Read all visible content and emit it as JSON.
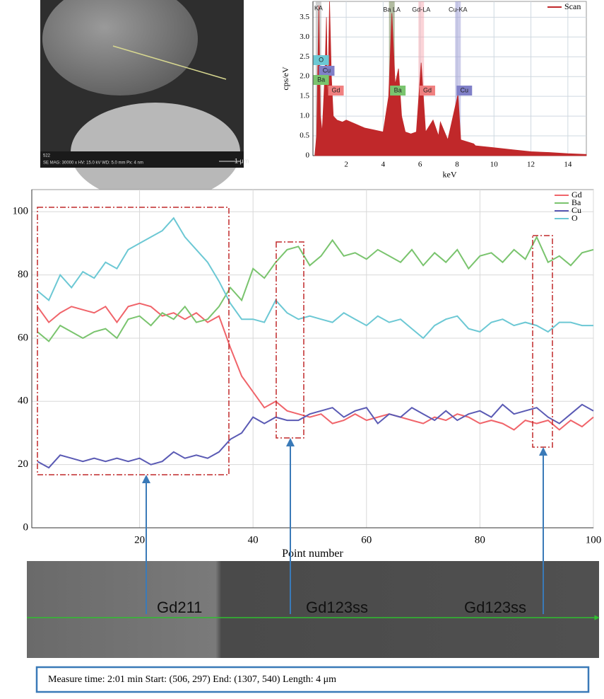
{
  "chart_data": [
    {
      "type": "area",
      "y_label": "cps/eV",
      "x_label": "keV",
      "x": [
        0.3,
        0.4,
        0.52,
        0.6,
        0.7,
        0.85,
        0.93,
        1.0,
        1.1,
        1.2,
        1.3,
        1.5,
        1.8,
        2.0,
        2.5,
        3.0,
        3.5,
        4.0,
        4.3,
        4.47,
        4.65,
        4.83,
        5.0,
        5.2,
        5.5,
        5.8,
        6.06,
        6.3,
        6.7,
        7.0,
        7.1,
        7.5,
        8.05,
        8.2,
        8.9,
        9.0,
        10,
        11,
        12,
        13,
        14,
        15
      ],
      "series": [
        {
          "name": "Scan",
          "color": "#c0282a",
          "values": [
            0.0,
            0.5,
            3.8,
            1.0,
            0.6,
            2.1,
            3.5,
            1.2,
            3.9,
            2.0,
            1.0,
            0.9,
            0.85,
            0.9,
            0.8,
            0.7,
            0.65,
            0.6,
            1.5,
            3.6,
            1.8,
            2.2,
            1.0,
            0.6,
            0.55,
            0.6,
            2.35,
            0.6,
            0.9,
            0.5,
            0.85,
            0.4,
            1.55,
            0.4,
            0.3,
            0.25,
            0.2,
            0.15,
            0.1,
            0.08,
            0.05,
            0.03
          ]
        }
      ],
      "xlim": [
        0.2,
        15
      ],
      "xticks": [
        2,
        4,
        6,
        8,
        10,
        12,
        14
      ],
      "ylim": [
        0,
        3.9
      ],
      "yticks": [
        0,
        0.5,
        {
          "value": 1,
          "label": "1.0"
        },
        1.5,
        {
          "value": 2,
          "label": "2.0"
        },
        2.5,
        {
          "value": 3,
          "label": "3.0"
        },
        3.5
      ],
      "grid": true,
      "legend": "top-right",
      "annotations": [
        "KA",
        "Ba LA",
        "Gd-LA",
        "Cu-KA",
        "O",
        "Cu",
        "Ba",
        "Gd",
        "Ba",
        "Gd",
        "Cu"
      ]
    },
    {
      "type": "line",
      "x_label": "Point number",
      "x": [
        2,
        4,
        6,
        8,
        10,
        12,
        14,
        16,
        18,
        20,
        22,
        24,
        26,
        28,
        30,
        32,
        34,
        36,
        38,
        40,
        42,
        44,
        46,
        48,
        50,
        52,
        54,
        56,
        58,
        60,
        62,
        64,
        66,
        68,
        70,
        72,
        74,
        76,
        78,
        80,
        82,
        84,
        86,
        88,
        90,
        92,
        94,
        96,
        98,
        100
      ],
      "series": [
        {
          "name": "Gd",
          "color": "#f0646a",
          "values": [
            70,
            65,
            68,
            70,
            69,
            68,
            70,
            65,
            70,
            71,
            70,
            67,
            68,
            66,
            68,
            65,
            67,
            57,
            48,
            43,
            38,
            40,
            37,
            36,
            35,
            36,
            33,
            34,
            36,
            34,
            35,
            36,
            35,
            34,
            33,
            35,
            34,
            36,
            35,
            33,
            34,
            33,
            31,
            34,
            33,
            34,
            31,
            34,
            32,
            35
          ]
        },
        {
          "name": "Ba",
          "color": "#7ac46e",
          "values": [
            62,
            59,
            64,
            62,
            60,
            62,
            63,
            60,
            66,
            67,
            64,
            68,
            66,
            70,
            65,
            66,
            70,
            76,
            72,
            82,
            79,
            84,
            88,
            89,
            83,
            86,
            91,
            86,
            87,
            85,
            88,
            86,
            84,
            88,
            83,
            87,
            84,
            88,
            82,
            86,
            87,
            84,
            88,
            85,
            92,
            84,
            86,
            83,
            87,
            88
          ]
        },
        {
          "name": "Cu",
          "color": "#5a5ab4",
          "values": [
            21,
            19,
            23,
            22,
            21,
            22,
            21,
            22,
            21,
            22,
            20,
            21,
            24,
            22,
            23,
            22,
            24,
            28,
            30,
            35,
            33,
            35,
            34,
            34,
            36,
            37,
            38,
            35,
            37,
            38,
            33,
            36,
            35,
            38,
            36,
            34,
            37,
            34,
            36,
            37,
            35,
            39,
            36,
            37,
            38,
            35,
            33,
            36,
            39,
            37
          ]
        },
        {
          "name": "O",
          "color": "#6cc8d4",
          "values": [
            75,
            72,
            80,
            76,
            81,
            79,
            84,
            82,
            88,
            90,
            92,
            94,
            98,
            92,
            88,
            84,
            78,
            71,
            66,
            66,
            65,
            72,
            68,
            66,
            67,
            66,
            65,
            68,
            66,
            64,
            67,
            65,
            66,
            63,
            60,
            64,
            66,
            67,
            63,
            62,
            65,
            66,
            64,
            65,
            64,
            62,
            65,
            65,
            64,
            64
          ]
        }
      ],
      "xlim": [
        1,
        100
      ],
      "xticks": [
        20,
        40,
        60,
        80,
        100
      ],
      "ylim": [
        0,
        107
      ],
      "yticks": [
        0,
        20,
        40,
        60,
        80,
        100
      ],
      "grid": true,
      "legend": "top-right"
    }
  ],
  "sem_image": {
    "label": "522",
    "info": "SE MAG: 30000 x HV: 15.0 kV WD: 5.0 mm Px: 4 nm",
    "scale": "1 μm"
  },
  "line_scan": {
    "labels": [
      "Gd211",
      "Gd123ss",
      "Gd123ss"
    ]
  },
  "caption": "Measure time: 2:01 min Start: (506, 297) End: (1307, 540) Length: 4 μm"
}
